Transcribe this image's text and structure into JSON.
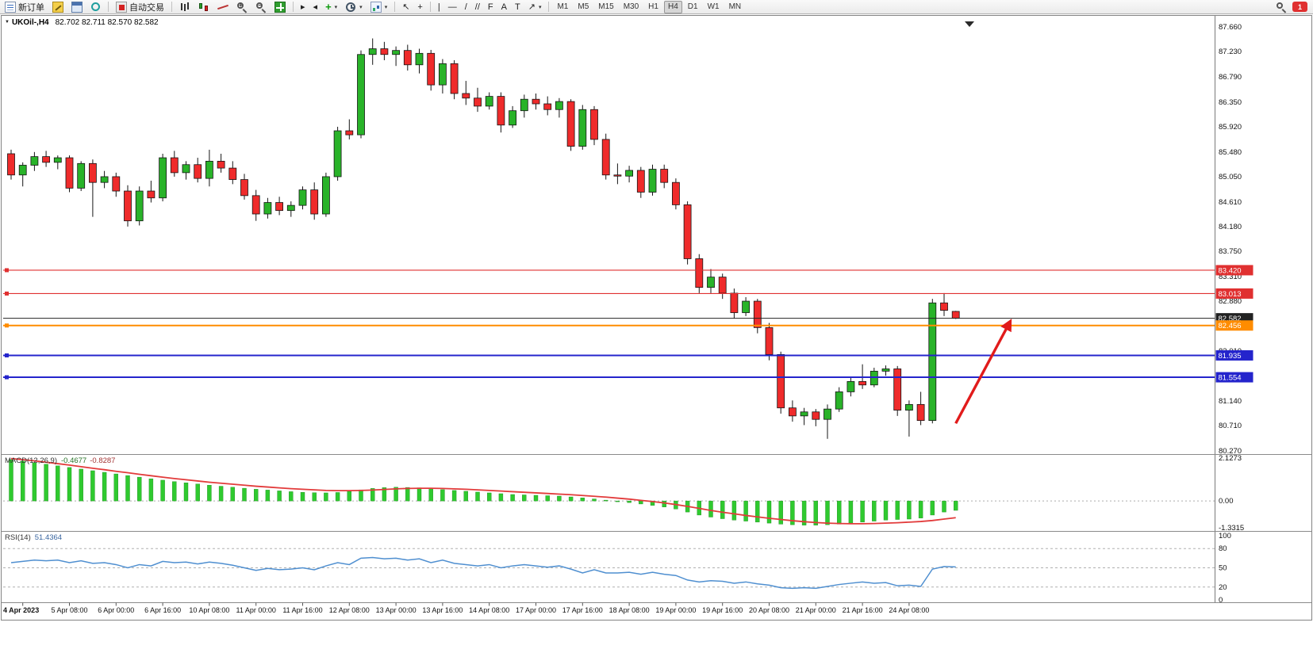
{
  "toolbar": {
    "new_order_label": "新订单",
    "autotrade_label": "自动交易",
    "timeframes": [
      "M1",
      "M5",
      "M15",
      "M30",
      "H1",
      "H4",
      "D1",
      "W1",
      "MN"
    ],
    "active_timeframe": "H4",
    "notification_count": "1"
  },
  "icons": {
    "dropdown_triangle": "▼",
    "caret": "▾",
    "cursor": "↖",
    "crosshair": "+",
    "vline": "|",
    "hline": "—",
    "trendline": "/",
    "channel": "//",
    "fibonacci": "F",
    "text_tool": "A",
    "label_tool": "T",
    "arrow_tool": "↗",
    "shift_left": "◂",
    "shift_right": "▸",
    "plus": "+",
    "minus": "−",
    "add": "+"
  },
  "chart": {
    "symbol_title": "UKOil-,H4",
    "ohlc_text": "82.702 82.711 82.570 82.582",
    "macd_label": "MACD(12,26,9)",
    "macd_value_main": "-0.4677",
    "macd_value_signal": "-0.8287",
    "rsi_label": "RSI(14)",
    "rsi_value": "51.4364"
  },
  "colors": {
    "up": "#29b329",
    "down": "#ef2b2b",
    "wick": "#151515",
    "macd_histogram": "#2fca2f",
    "macd_signal": "#e23b3b",
    "rsi_line": "#4f8fd0",
    "line_red": "#e03030",
    "line_blue": "#2424cc",
    "line_orange": "#ff8c00",
    "current_price": "#222222",
    "arrow": "#e11b1b"
  },
  "chart_data": {
    "type": "candlestick",
    "symbol": "UKOil-",
    "timeframe": "H4",
    "y_range": [
      80.27,
      87.66
    ],
    "price_axis_labels": [
      "87.660",
      "87.230",
      "86.790",
      "86.350",
      "85.920",
      "85.480",
      "85.050",
      "84.610",
      "84.180",
      "83.750",
      "83.310",
      "82.880",
      "82.440",
      "82.010",
      "81.570",
      "81.140",
      "80.710",
      "80.270"
    ],
    "candles": [
      [
        85.45,
        85.52,
        85.0,
        85.08
      ],
      [
        85.08,
        85.3,
        84.88,
        85.25
      ],
      [
        85.25,
        85.48,
        85.15,
        85.4
      ],
      [
        85.4,
        85.5,
        85.22,
        85.3
      ],
      [
        85.3,
        85.42,
        85.18,
        85.38
      ],
      [
        85.38,
        85.42,
        84.78,
        84.85
      ],
      [
        84.85,
        85.32,
        84.8,
        85.28
      ],
      [
        85.28,
        85.35,
        84.35,
        84.95
      ],
      [
        84.95,
        85.15,
        84.85,
        85.05
      ],
      [
        85.05,
        85.12,
        84.7,
        84.8
      ],
      [
        84.8,
        84.9,
        84.18,
        84.28
      ],
      [
        84.28,
        84.88,
        84.2,
        84.8
      ],
      [
        84.8,
        84.98,
        84.6,
        84.68
      ],
      [
        84.68,
        85.45,
        84.62,
        85.38
      ],
      [
        85.38,
        85.5,
        85.05,
        85.12
      ],
      [
        85.12,
        85.32,
        85.0,
        85.26
      ],
      [
        85.26,
        85.38,
        84.95,
        85.02
      ],
      [
        85.02,
        85.52,
        84.88,
        85.32
      ],
      [
        85.32,
        85.45,
        85.12,
        85.2
      ],
      [
        85.2,
        85.32,
        84.92,
        85.0
      ],
      [
        85.0,
        85.1,
        84.65,
        84.72
      ],
      [
        84.72,
        84.82,
        84.28,
        84.4
      ],
      [
        84.4,
        84.68,
        84.32,
        84.6
      ],
      [
        84.6,
        84.7,
        84.38,
        84.46
      ],
      [
        84.46,
        84.62,
        84.35,
        84.55
      ],
      [
        84.55,
        84.88,
        84.48,
        84.82
      ],
      [
        84.82,
        84.95,
        84.3,
        84.4
      ],
      [
        84.4,
        85.12,
        84.35,
        85.05
      ],
      [
        85.05,
        85.92,
        84.98,
        85.85
      ],
      [
        85.85,
        86.05,
        85.7,
        85.78
      ],
      [
        85.78,
        87.25,
        85.72,
        87.18
      ],
      [
        87.18,
        87.46,
        87.0,
        87.28
      ],
      [
        87.28,
        87.4,
        87.08,
        87.18
      ],
      [
        87.18,
        87.32,
        86.98,
        87.25
      ],
      [
        87.25,
        87.35,
        86.9,
        87.0
      ],
      [
        87.0,
        87.28,
        86.85,
        87.2
      ],
      [
        87.2,
        87.26,
        86.55,
        86.65
      ],
      [
        86.65,
        87.1,
        86.5,
        87.02
      ],
      [
        87.02,
        87.08,
        86.4,
        86.5
      ],
      [
        86.5,
        86.72,
        86.3,
        86.42
      ],
      [
        86.42,
        86.6,
        86.18,
        86.28
      ],
      [
        86.28,
        86.52,
        86.22,
        86.45
      ],
      [
        86.45,
        86.52,
        85.82,
        85.95
      ],
      [
        85.95,
        86.28,
        85.9,
        86.2
      ],
      [
        86.2,
        86.48,
        86.08,
        86.4
      ],
      [
        86.4,
        86.5,
        86.22,
        86.32
      ],
      [
        86.32,
        86.45,
        86.12,
        86.22
      ],
      [
        86.22,
        86.42,
        86.08,
        86.36
      ],
      [
        86.36,
        86.4,
        85.5,
        85.58
      ],
      [
        85.58,
        86.3,
        85.52,
        86.22
      ],
      [
        86.22,
        86.28,
        85.6,
        85.7
      ],
      [
        85.7,
        85.8,
        85.0,
        85.08
      ],
      [
        85.08,
        85.28,
        84.92,
        85.06
      ],
      [
        85.06,
        85.24,
        84.95,
        85.16
      ],
      [
        85.16,
        85.22,
        84.68,
        84.78
      ],
      [
        84.78,
        85.26,
        84.72,
        85.18
      ],
      [
        85.18,
        85.26,
        84.85,
        84.95
      ],
      [
        84.95,
        85.02,
        84.48,
        84.56
      ],
      [
        84.56,
        84.62,
        83.52,
        83.62
      ],
      [
        83.62,
        83.7,
        83.02,
        83.12
      ],
      [
        83.12,
        83.44,
        83.02,
        83.3
      ],
      [
        83.3,
        83.36,
        82.92,
        83.02
      ],
      [
        83.02,
        83.1,
        82.58,
        82.68
      ],
      [
        82.68,
        82.95,
        82.62,
        82.88
      ],
      [
        82.88,
        82.92,
        82.32,
        82.42
      ],
      [
        82.42,
        82.5,
        81.85,
        81.95
      ],
      [
        81.95,
        82.0,
        80.92,
        81.02
      ],
      [
        81.02,
        81.15,
        80.78,
        80.88
      ],
      [
        80.88,
        81.02,
        80.72,
        80.95
      ],
      [
        80.95,
        81.0,
        80.7,
        80.82
      ],
      [
        80.82,
        81.08,
        80.48,
        81.0
      ],
      [
        81.0,
        81.38,
        80.95,
        81.3
      ],
      [
        81.3,
        81.55,
        81.22,
        81.48
      ],
      [
        81.48,
        81.78,
        81.35,
        81.42
      ],
      [
        81.42,
        81.72,
        81.38,
        81.66
      ],
      [
        81.66,
        81.76,
        81.58,
        81.7
      ],
      [
        81.7,
        81.75,
        80.88,
        80.98
      ],
      [
        80.98,
        81.15,
        80.52,
        81.08
      ],
      [
        81.08,
        81.3,
        80.72,
        80.8
      ],
      [
        80.8,
        82.92,
        80.75,
        82.85
      ],
      [
        82.85,
        83.02,
        82.62,
        82.72
      ],
      [
        82.702,
        82.711,
        82.57,
        82.582
      ]
    ],
    "date_labels": [
      "4 Apr 2023",
      "5 Apr 08:00",
      "6 Apr 00:00",
      "6 Apr 16:00",
      "10 Apr 08:00",
      "11 Apr 00:00",
      "11 Apr 16:00",
      "12 Apr 08:00",
      "13 Apr 00:00",
      "13 Apr 16:00",
      "14 Apr 08:00",
      "17 Apr 00:00",
      "17 Apr 16:00",
      "18 Apr 08:00",
      "19 Apr 00:00",
      "19 Apr 16:00",
      "20 Apr 08:00",
      "21 Apr 00:00",
      "21 Apr 16:00",
      "24 Apr 08:00"
    ],
    "date_label_start": 1,
    "label_every_n_candles": 4,
    "horizontal_lines": [
      {
        "price": 83.42,
        "label": "83.420",
        "color": "line_red",
        "width": 1.2,
        "handle": true
      },
      {
        "price": 83.013,
        "label": "83.013",
        "color": "line_red",
        "width": 1.2,
        "handle": true
      },
      {
        "price": 82.582,
        "label": "82.582",
        "color": "current_price",
        "width": 1.1,
        "handle": false
      },
      {
        "price": 82.456,
        "label": "82.456",
        "color": "line_orange",
        "width": 2,
        "handle": true
      },
      {
        "price": 81.935,
        "label": "81.935",
        "color": "line_blue",
        "width": 2,
        "handle": true
      },
      {
        "price": 81.554,
        "label": "81.554",
        "color": "line_blue",
        "width": 2,
        "handle": true
      }
    ],
    "arrow": {
      "x1_candle": 81,
      "y1_price": 80.75,
      "x2_candle": 85.6,
      "y2_price": 82.5,
      "color": "#e11b1b"
    },
    "indicators": {
      "macd": {
        "params": "12,26,9",
        "max": 2.1273,
        "min": -1.3315,
        "axis_labels": [
          "2.1273",
          "0.00",
          "-1.3315"
        ],
        "histogram": [
          2.05,
          1.98,
          1.9,
          1.82,
          1.74,
          1.66,
          1.58,
          1.5,
          1.42,
          1.34,
          1.26,
          1.18,
          1.1,
          1.03,
          0.96,
          0.9,
          0.84,
          0.78,
          0.73,
          0.68,
          0.63,
          0.58,
          0.54,
          0.5,
          0.46,
          0.43,
          0.41,
          0.4,
          0.42,
          0.48,
          0.55,
          0.62,
          0.66,
          0.68,
          0.67,
          0.65,
          0.6,
          0.56,
          0.52,
          0.48,
          0.44,
          0.4,
          0.36,
          0.32,
          0.3,
          0.28,
          0.26,
          0.24,
          0.2,
          0.15,
          0.1,
          0.04,
          -0.02,
          -0.08,
          -0.15,
          -0.22,
          -0.3,
          -0.4,
          -0.55,
          -0.7,
          -0.8,
          -0.88,
          -0.95,
          -1.0,
          -1.05,
          -1.1,
          -1.15,
          -1.18,
          -1.2,
          -1.2,
          -1.18,
          -1.15,
          -1.1,
          -1.05,
          -1.0,
          -0.95,
          -0.92,
          -0.9,
          -0.85,
          -0.7,
          -0.55,
          -0.4677
        ],
        "signal": [
          2.1,
          2.05,
          1.99,
          1.92,
          1.85,
          1.78,
          1.7,
          1.62,
          1.55,
          1.47,
          1.4,
          1.32,
          1.25,
          1.18,
          1.11,
          1.05,
          0.99,
          0.93,
          0.88,
          0.83,
          0.78,
          0.73,
          0.69,
          0.65,
          0.61,
          0.58,
          0.55,
          0.52,
          0.51,
          0.51,
          0.52,
          0.54,
          0.57,
          0.6,
          0.62,
          0.63,
          0.63,
          0.62,
          0.6,
          0.58,
          0.55,
          0.52,
          0.49,
          0.46,
          0.43,
          0.4,
          0.37,
          0.34,
          0.31,
          0.27,
          0.23,
          0.19,
          0.14,
          0.09,
          0.03,
          -0.03,
          -0.1,
          -0.18,
          -0.27,
          -0.37,
          -0.47,
          -0.56,
          -0.64,
          -0.72,
          -0.79,
          -0.86,
          -0.92,
          -0.98,
          -1.03,
          -1.07,
          -1.1,
          -1.12,
          -1.13,
          -1.13,
          -1.12,
          -1.1,
          -1.08,
          -1.05,
          -1.02,
          -0.97,
          -0.9,
          -0.8287
        ]
      },
      "rsi": {
        "period": 14,
        "range": [
          0,
          100
        ],
        "levels": [
          80,
          50,
          20
        ],
        "axis_labels": [
          "100",
          "80",
          "50",
          "20",
          "0"
        ],
        "values": [
          58,
          60,
          62,
          61,
          62,
          58,
          61,
          57,
          58,
          55,
          50,
          55,
          53,
          60,
          58,
          59,
          56,
          59,
          57,
          54,
          50,
          46,
          49,
          47,
          48,
          50,
          47,
          53,
          58,
          55,
          65,
          66,
          64,
          65,
          62,
          64,
          58,
          62,
          57,
          55,
          53,
          55,
          50,
          53,
          55,
          53,
          51,
          53,
          48,
          42,
          47,
          42,
          42,
          43,
          40,
          43,
          40,
          38,
          31,
          28,
          30,
          29,
          26,
          28,
          25,
          23,
          19,
          18,
          19,
          18,
          21,
          24,
          26,
          28,
          26,
          27,
          22,
          23,
          21,
          48,
          52,
          51.4364
        ]
      }
    }
  }
}
